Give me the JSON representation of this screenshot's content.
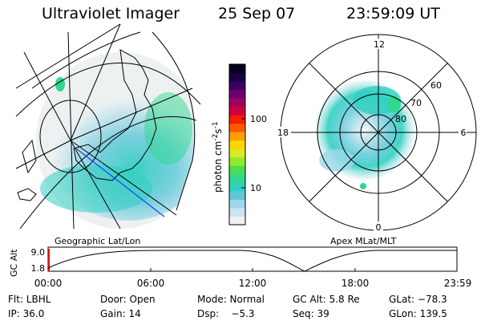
{
  "header": {
    "instrument": "Ultraviolet Imager",
    "date": "25 Sep 07",
    "time": "23:59:09 UT"
  },
  "colorbar": {
    "unit": "photon cm",
    "unit_exp1": "-2",
    "unit_mid": "s",
    "unit_exp2": "-1",
    "ticks": [
      "100",
      "10"
    ],
    "colors": [
      "#f0f0f0",
      "#c8e6f0",
      "#9ed8ea",
      "#5ec8d8",
      "#2fd0c0",
      "#30d890",
      "#48e050",
      "#90e830",
      "#d8ec20",
      "#f8d800",
      "#ffa000",
      "#ff5a00",
      "#f02000",
      "#d0003c",
      "#a00060",
      "#6a0070",
      "#3a0064",
      "#1a0040",
      "#050020"
    ]
  },
  "geo_panel": {
    "caption": "Geographic Lat/Lon"
  },
  "polar_panel": {
    "caption": "Apex MLat/MLT",
    "mlt_labels": {
      "top": "12",
      "bottom": "0",
      "left": "18",
      "right": "6"
    },
    "lat_labels": [
      "60",
      "70",
      "80"
    ]
  },
  "altitude_plot": {
    "ylabel": "GC Alt",
    "yticks": [
      "9.0",
      "1.8"
    ],
    "xticks": [
      "00:00",
      "06:00",
      "12:00",
      "18:00",
      "23:59"
    ]
  },
  "info": {
    "row1": {
      "filter": "Flt: LBHL",
      "door": "Door: Open",
      "mode": "Mode: Normal",
      "gc_alt": "GC Alt: 5.8 Re",
      "glat": "GLat: −78.3"
    },
    "row2": {
      "ip": "IP: 36.0",
      "gain": "Gain: 14",
      "dsp": "Dsp:    −5.3",
      "seq": "Seq: 39",
      "glon": "GLon: 139.5"
    }
  }
}
